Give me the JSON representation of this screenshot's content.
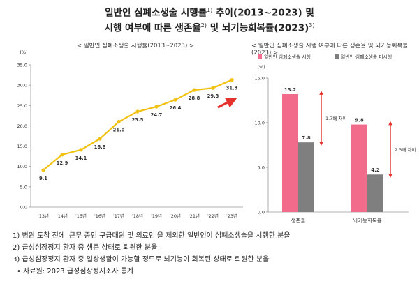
{
  "title": {
    "line1": "일반인 심폐소생술 시행률",
    "line1_sup": "1)",
    "line1_tail": " 추이(2013~2023) 및",
    "line2_a": "시행 여부에 따른 생존율",
    "line2_sup_a": "2)",
    "line2_b": " 및 뇌기능회복률(2023)",
    "line2_sup_b": "3)"
  },
  "chart_data": [
    {
      "type": "line",
      "subtitle": "< 일반인 심폐소생술 시행률(2013~2023) >",
      "unit": "(%)",
      "x": [
        "'13년",
        "'14년",
        "'15년",
        "'16년",
        "'17년",
        "'18년",
        "'19년",
        "'20년",
        "'21년",
        "'22년",
        "'23년"
      ],
      "values": [
        9.1,
        12.9,
        14.1,
        16.8,
        21.0,
        23.5,
        24.7,
        26.4,
        28.8,
        29.3,
        31.3
      ],
      "ylim": [
        0,
        35
      ],
      "yticks": [
        "0.0",
        "5.0",
        "10.0",
        "15.0",
        "20.0",
        "25.0",
        "30.0",
        "35.0"
      ],
      "color": "#f2c00f",
      "arrow_color": "#e5322d",
      "grid": false
    },
    {
      "type": "bar",
      "subtitle": "< 일반인 심폐소생술 시행 여부에 따른 생존율 및 뇌기능회복률(2023) >",
      "unit": "(%)",
      "categories": [
        "생존율",
        "뇌기능회복률"
      ],
      "series": [
        {
          "name": "일반인 심폐소생술 시행",
          "values": [
            13.2,
            9.8
          ],
          "color": "#f26b8a"
        },
        {
          "name": "일반인 심폐소생술 미시행",
          "values": [
            7.8,
            4.2
          ],
          "color": "#7f7f7f"
        }
      ],
      "ylim": [
        0,
        15
      ],
      "yticks": [
        "0.0",
        "5.0",
        "10.0",
        "15.0"
      ],
      "annotations": [
        "1.7배 차이",
        "2.3배 차이"
      ],
      "legend": "top",
      "grid": false
    }
  ],
  "notes": [
    "1) 병원 도착 전에 '근무 중인 구급대원 및 의료인'을 제외한 일반인이 심폐소생술을 시행한 분율",
    "2) 급성심장정지 환자 중 생존 상태로 퇴원한 분율",
    "3) 급성심장정지 환자 중 일상생활이 가능할 정도로 뇌기능이 회복된 상태로 퇴원한 분율",
    "• 자료원: 2023 급성심장정지조사 통계"
  ]
}
